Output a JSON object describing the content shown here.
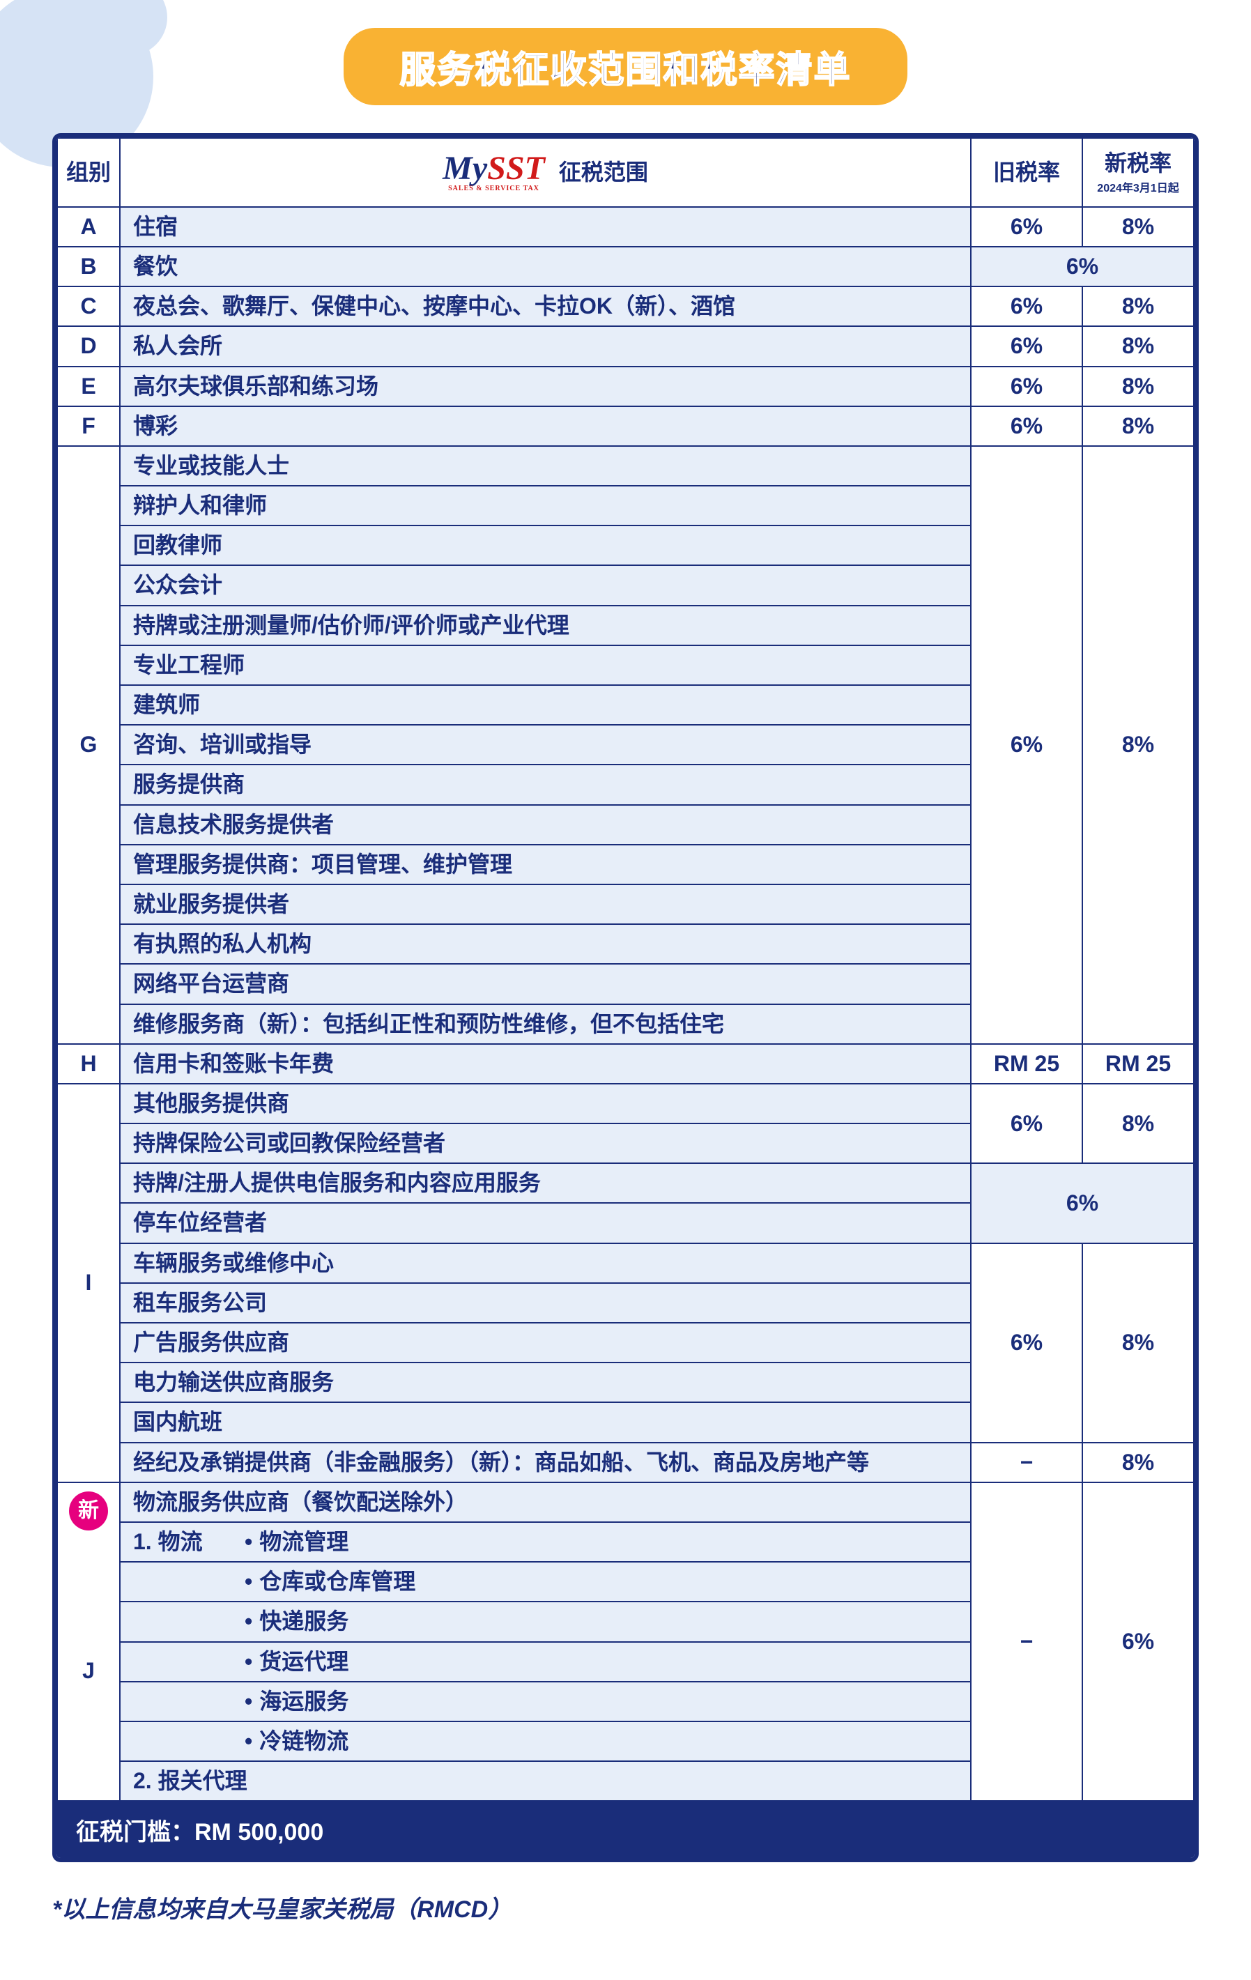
{
  "colors": {
    "brand_blue": "#1a2d7a",
    "accent_yellow": "#f9b233",
    "row_tint": "#e7eef9",
    "bg_shape": "#d6e3f5",
    "badge_pink": "#e6007e",
    "logo_red": "#d11a1a",
    "white": "#ffffff"
  },
  "title": "服务税征收范围和税率清单",
  "header": {
    "group": "组别",
    "scope": "征税范围",
    "old_rate": "旧税率",
    "new_rate": "新税率",
    "new_rate_sub": "2024年3月1日起",
    "logo_main": "My",
    "logo_red": "SST",
    "logo_sub": "SALES & SERVICE TAX"
  },
  "rows": {
    "A": {
      "scope": "住宿",
      "old": "6%",
      "new": "8%"
    },
    "B": {
      "scope": "餐饮",
      "merged": "6%"
    },
    "C": {
      "scope": "夜总会、歌舞厅、保健中心、按摩中心、卡拉OK（新）、酒馆",
      "old": "6%",
      "new": "8%"
    },
    "D": {
      "scope": "私人会所",
      "old": "6%",
      "new": "8%"
    },
    "E": {
      "scope": "高尔夫球俱乐部和练习场",
      "old": "6%",
      "new": "8%"
    },
    "F": {
      "scope": "博彩",
      "old": "6%",
      "new": "8%"
    },
    "G": {
      "items": [
        "专业或技能人士",
        "辩护人和律师",
        "回教律师",
        "公众会计",
        "持牌或注册测量师/估价师/评价师或产业代理",
        "专业工程师",
        "建筑师",
        "咨询、培训或指导",
        "服务提供商",
        "信息技术服务提供者",
        "管理服务提供商：项目管理、维护管理",
        "就业服务提供者",
        "有执照的私人机构",
        "网络平台运营商",
        "维修服务商（新）：包括纠正性和预防性维修，但不包括住宅"
      ],
      "old": "6%",
      "new": "8%"
    },
    "H": {
      "scope": "信用卡和签账卡年费",
      "old": "RM 25",
      "new": "RM 25"
    },
    "I": {
      "block1": {
        "items": [
          "其他服务提供商",
          "持牌保险公司或回教保险经营者"
        ],
        "old": "6%",
        "new": "8%"
      },
      "block2": {
        "items": [
          "持牌/注册人提供电信服务和内容应用服务",
          "停车位经营者"
        ],
        "merged": "6%"
      },
      "block3": {
        "items": [
          "车辆服务或维修中心",
          "租车服务公司",
          "广告服务供应商",
          "电力输送供应商服务",
          "国内航班"
        ],
        "old": "6%",
        "new": "8%"
      },
      "block4": {
        "scope": "经纪及承销提供商（非金融服务）（新）：商品如船、飞机、商品及房地产等",
        "old": "−",
        "new": "8%"
      }
    },
    "J": {
      "badge": "新",
      "heading": "物流服务供应商（餐饮配送除外）",
      "line1_num": "1. 物流",
      "line1_bullet": "物流管理",
      "bullets": [
        "仓库或仓库管理",
        "快递服务",
        "货运代理",
        "海运服务",
        "冷链物流"
      ],
      "line2": "2. 报关代理",
      "old": "−",
      "new": "6%"
    }
  },
  "threshold": "征税门槛：RM 500,000",
  "footnote": "*以上信息均来自大马皇家关税局（RMCD）"
}
